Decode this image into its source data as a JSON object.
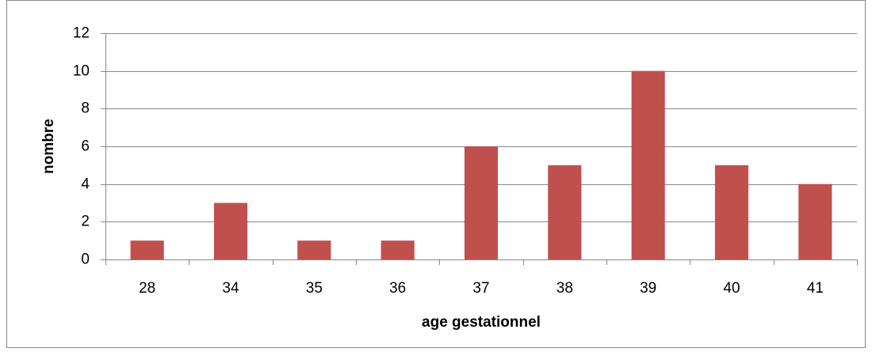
{
  "chart_data": {
    "type": "bar",
    "x_label": "age gestationnel",
    "y_label": "nombre",
    "categories": [
      "28",
      "34",
      "35",
      "36",
      "37",
      "38",
      "39",
      "40",
      "41"
    ],
    "values": [
      1,
      3,
      1,
      1,
      6,
      5,
      10,
      5,
      4
    ],
    "color": "#c0504d",
    "ylim": [
      0,
      12
    ],
    "yticks": [
      0,
      2,
      4,
      6,
      8,
      10,
      12
    ],
    "grid": true
  }
}
